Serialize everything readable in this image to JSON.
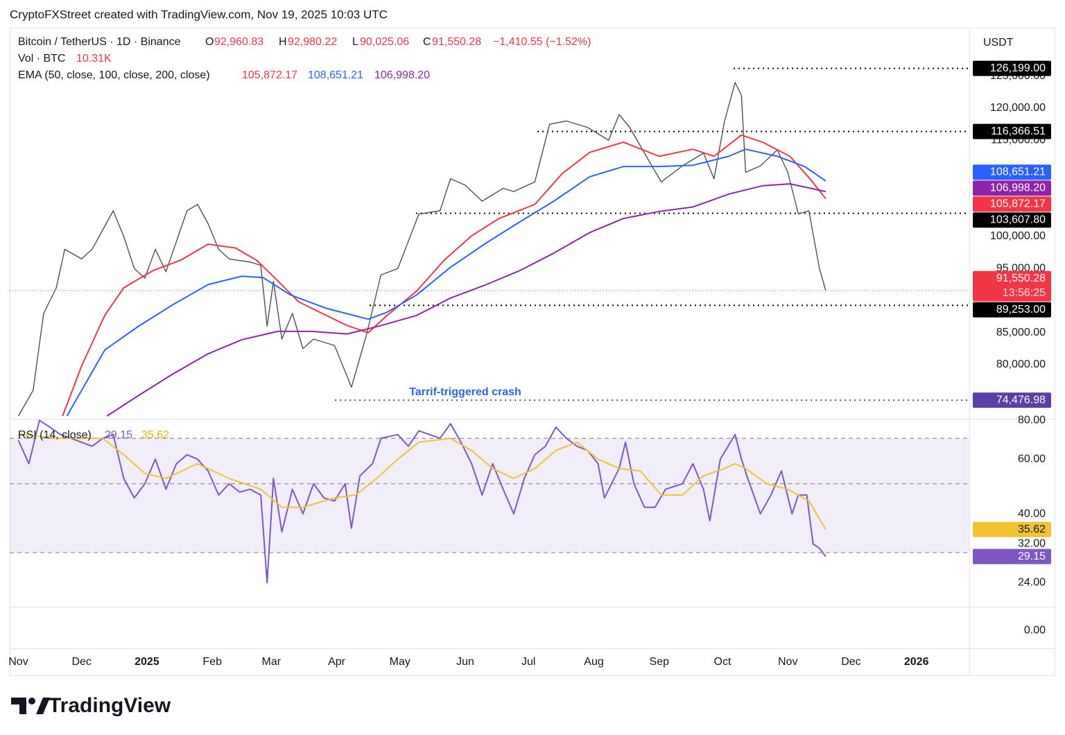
{
  "header": "CryptoFXStreet created with TradingView.com, Nov 19, 2025 10:03 UTC",
  "footer": {
    "logo": "TradingView"
  },
  "chart_data": [
    {
      "type": "line",
      "currency": "USDT",
      "legend": {
        "symbol": "Bitcoin / TetherUS · 1D · Binance",
        "open_key": "O",
        "open": "92,960.83",
        "high_key": "H",
        "high": "92,980.22",
        "low_key": "L",
        "low": "90,025.06",
        "close_key": "C",
        "close": "91,550.28",
        "change": "−1,410.55 (−1.52%)",
        "volume_key": "Vol · BTC",
        "volume": "10.31K",
        "ema": "EMA (50, close, 100, close, 200, close)"
      },
      "annotation": "Tarrif-triggered crash",
      "xlim": [
        -4.1,
        451.1
      ],
      "xticks": [
        {
          "value": 0,
          "label": "Nov"
        },
        {
          "value": 30,
          "label": "Dec"
        },
        {
          "value": 61,
          "label": "2025"
        },
        {
          "value": 92,
          "label": "Feb"
        },
        {
          "value": 120,
          "label": "Mar"
        },
        {
          "value": 151,
          "label": "Apr"
        },
        {
          "value": 181,
          "label": "May"
        },
        {
          "value": 212,
          "label": "Jun"
        },
        {
          "value": 242,
          "label": "Jul"
        },
        {
          "value": 273,
          "label": "Aug"
        },
        {
          "value": 304,
          "label": "Sep"
        },
        {
          "value": 334,
          "label": "Oct"
        },
        {
          "value": 365,
          "label": "Nov"
        },
        {
          "value": 395,
          "label": "Dec"
        },
        {
          "value": 426,
          "label": "2026"
        }
      ],
      "ylim": [
        71568,
        132541
      ],
      "yticks": [
        {
          "value": 80000,
          "label": "80,000.00"
        },
        {
          "value": 85000,
          "label": "85,000.00"
        },
        {
          "value": 95000,
          "label": "95,000.00"
        },
        {
          "value": 100000,
          "label": "100,000.00"
        },
        {
          "value": 115000,
          "label": "115,000.00"
        },
        {
          "value": 120000,
          "label": "120,000.00"
        },
        {
          "value": 125000,
          "label": "125,000.00"
        }
      ],
      "series": [
        {
          "color": "#4a4f5c",
          "x": [
            0,
            7,
            12,
            18,
            22,
            30,
            35,
            45,
            50,
            55,
            60,
            65,
            70,
            80,
            85,
            90,
            95,
            100,
            110,
            115,
            118,
            121,
            125,
            130,
            135,
            140,
            150,
            158,
            165,
            172,
            180,
            190,
            200,
            205,
            212,
            220,
            230,
            235,
            245,
            252,
            260,
            270,
            280,
            285,
            290,
            297,
            305,
            315,
            325,
            330,
            335,
            340,
            343,
            345,
            352,
            360,
            365,
            370,
            375,
            380,
            383
          ],
          "values": [
            72000,
            76000,
            88000,
            92000,
            98000,
            96500,
            98000,
            104000,
            100000,
            95000,
            93500,
            98000,
            94500,
            104000,
            105000,
            102000,
            98000,
            96500,
            96000,
            95500,
            86000,
            93000,
            84000,
            88000,
            82500,
            84000,
            83000,
            76500,
            84500,
            94000,
            95000,
            103500,
            104000,
            109000,
            108000,
            105500,
            107500,
            107000,
            108500,
            117500,
            118000,
            117000,
            115000,
            119000,
            117000,
            113000,
            108500,
            111000,
            113000,
            109000,
            118000,
            124000,
            122000,
            110000,
            111000,
            113500,
            110000,
            103500,
            104000,
            95000,
            91550.28
          ]
        },
        {
          "color": "#f23645",
          "last_label": "105,872.17",
          "x": [
            21,
            30,
            41,
            50,
            64,
            77,
            90,
            103,
            113,
            123,
            133,
            146,
            156,
            166,
            175,
            189,
            202,
            215,
            228,
            245,
            258,
            271,
            287,
            304,
            320,
            330,
            343,
            353,
            366,
            376,
            383
          ],
          "values": [
            72000,
            79800,
            87700,
            92000,
            94700,
            96300,
            98800,
            98200,
            96300,
            93100,
            89800,
            87700,
            86100,
            85000,
            87700,
            91500,
            96300,
            100100,
            102800,
            105000,
            109800,
            113100,
            114700,
            112500,
            113600,
            112500,
            115800,
            114700,
            112500,
            108800,
            105872.17
          ]
        },
        {
          "color": "#2962ff",
          "last_label": "108,651.21",
          "x": [
            23,
            41,
            57,
            73,
            90,
            106,
            116,
            129,
            146,
            166,
            175,
            189,
            205,
            222,
            238,
            254,
            271,
            287,
            304,
            320,
            337,
            345,
            360,
            373,
            383
          ],
          "values": [
            72000,
            82300,
            86000,
            89300,
            92500,
            93800,
            93600,
            90900,
            88800,
            87100,
            88200,
            90900,
            95200,
            99000,
            102300,
            105500,
            109300,
            110900,
            110900,
            111100,
            112500,
            113600,
            112500,
            110900,
            108651.21
          ]
        },
        {
          "color": "#8e24aa",
          "last_label": "106,998.20",
          "x": [
            42,
            57,
            73,
            90,
            106,
            123,
            139,
            156,
            172,
            189,
            205,
            222,
            238,
            254,
            271,
            287,
            304,
            320,
            337,
            353,
            366,
            383
          ],
          "values": [
            72000,
            75200,
            78500,
            81700,
            83900,
            85200,
            85200,
            84800,
            86100,
            87700,
            90400,
            92500,
            94700,
            97400,
            100600,
            102800,
            103900,
            104600,
            106600,
            107900,
            108200,
            106998.2
          ]
        }
      ],
      "levels": [
        {
          "value": 126199.0,
          "label": "126,199.00",
          "from": 339.3,
          "color": "#000000"
        },
        {
          "value": 116366.51,
          "label": "116,366.51",
          "from": 246.2,
          "color": "#000000"
        },
        {
          "value": 103607.8,
          "label": "103,607.80",
          "from": 188.6,
          "color": "#000000"
        },
        {
          "value": 89253.0,
          "label": "89,253.00",
          "from": 166.6,
          "color": "#000000"
        },
        {
          "value": 74476.98,
          "label": "74,476.98",
          "from": 150.2,
          "color": "#5b3ea6"
        }
      ],
      "current": {
        "value": 91550.28,
        "label": "91,550.28",
        "countdown": "13:56:25",
        "color": "#f23645"
      }
    },
    {
      "type": "line",
      "title": "RSI (14, close)",
      "log": true,
      "xlim": [
        -4.1,
        451.1
      ],
      "ylim": [
        20.1,
        80.9
      ],
      "yticks": [
        {
          "value": 80,
          "label": "80.00"
        },
        {
          "value": 60,
          "label": "60.00"
        },
        {
          "value": 40,
          "label": "40.00"
        },
        {
          "value": 32,
          "label": "32.00"
        },
        {
          "value": 24,
          "label": "24.00"
        }
      ],
      "bands": [
        70,
        50,
        30
      ],
      "series": [
        {
          "color": "#7e57c2",
          "x": [
            0,
            5,
            10,
            15,
            20,
            25,
            30,
            35,
            40,
            45,
            50,
            55,
            60,
            65,
            70,
            75,
            80,
            85,
            90,
            95,
            100,
            105,
            110,
            115,
            118,
            121,
            125,
            130,
            135,
            140,
            145,
            150,
            155,
            158,
            162,
            168,
            172,
            180,
            185,
            190,
            195,
            200,
            205,
            210,
            215,
            220,
            225,
            230,
            235,
            240,
            245,
            250,
            255,
            260,
            265,
            270,
            275,
            278,
            285,
            288,
            292,
            297,
            302,
            307,
            315,
            320,
            325,
            328,
            333,
            340,
            343,
            346,
            352,
            357,
            362,
            367,
            370,
            374,
            377,
            380,
            383
          ],
          "values": [
            69,
            58,
            80,
            76,
            72,
            70,
            68,
            66,
            70,
            72,
            52,
            45,
            50,
            60,
            48,
            58,
            62,
            60,
            55,
            46,
            50,
            47,
            48,
            46,
            24,
            52,
            35,
            48,
            40,
            50,
            45,
            44,
            50,
            36,
            53,
            58,
            70,
            72,
            66,
            74,
            72,
            70,
            78,
            68,
            58,
            46,
            58,
            48,
            40,
            52,
            62,
            66,
            76,
            70,
            66,
            64,
            58,
            45,
            56,
            68,
            50,
            42,
            42,
            48,
            50,
            58,
            48,
            38,
            60,
            72,
            60,
            52,
            40,
            46,
            55,
            40,
            46,
            46,
            32,
            31,
            29.15
          ]
        },
        {
          "color": "#f2c230",
          "x": [
            0,
            20,
            40,
            50,
            60,
            70,
            85,
            100,
            115,
            125,
            135,
            150,
            160,
            170,
            180,
            190,
            205,
            215,
            225,
            235,
            245,
            255,
            265,
            275,
            285,
            295,
            305,
            315,
            325,
            335,
            340,
            345,
            355,
            365,
            375,
            383
          ],
          "values": [
            72,
            70,
            70,
            62,
            54,
            52,
            58,
            52,
            48,
            42,
            42,
            45,
            46,
            52,
            60,
            68,
            70,
            64,
            56,
            52,
            56,
            64,
            68,
            60,
            56,
            55,
            46,
            46,
            53,
            56,
            58,
            56,
            50,
            48,
            44,
            35.62
          ]
        }
      ]
    },
    {
      "type": "line",
      "ylim": [
        -0.76,
        1
      ],
      "yticks": [
        {
          "value": 0,
          "label": "0.00"
        }
      ]
    }
  ]
}
